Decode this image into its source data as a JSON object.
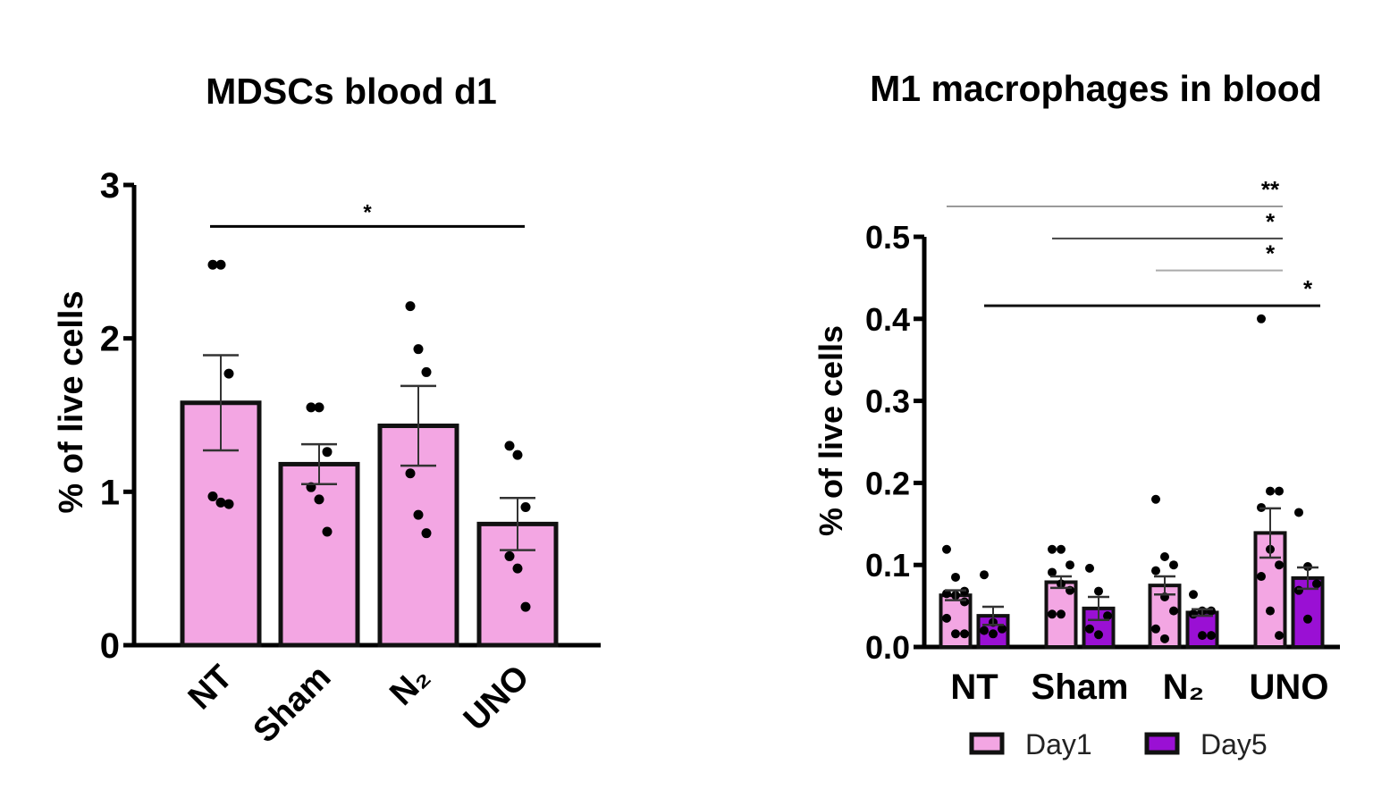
{
  "colors": {
    "day1": "#f3a6e3",
    "day5": "#9a10d4",
    "outline": "#111111",
    "point": "#000000"
  },
  "chart_data": [
    {
      "type": "bar",
      "title": "MDSCs blood d1",
      "ylabel": "% of live cells",
      "xlabel": "",
      "ylim": [
        0,
        3
      ],
      "yticks": [
        "0",
        "1",
        "2",
        "3"
      ],
      "categories": [
        "NT",
        "Sham",
        "N₂",
        "UNO"
      ],
      "values": [
        1.58,
        1.18,
        1.43,
        0.79
      ],
      "sem": [
        0.31,
        0.13,
        0.26,
        0.17
      ],
      "points": [
        [
          2.48,
          2.48,
          1.77,
          0.97,
          0.93,
          0.92
        ],
        [
          1.55,
          1.55,
          1.26,
          1.03,
          0.95,
          0.74
        ],
        [
          2.21,
          1.93,
          1.78,
          1.12,
          0.85,
          0.73
        ],
        [
          1.3,
          1.24,
          0.9,
          0.58,
          0.5,
          0.25
        ]
      ],
      "significance": [
        {
          "from": 0,
          "to": 3,
          "y": 2.73,
          "label": "*"
        }
      ],
      "grid": false
    },
    {
      "type": "bar",
      "title": "M1 macrophages in blood",
      "ylabel": "% of live cells",
      "xlabel": "",
      "ylim": [
        0,
        0.5
      ],
      "yticks": [
        "0.0",
        "0.1",
        "0.2",
        "0.3",
        "0.4",
        "0.5"
      ],
      "categories": [
        "NT",
        "Sham",
        "N₂",
        "UNO"
      ],
      "legend_position": "bottom",
      "series": [
        {
          "name": "Day1",
          "values": [
            0.063,
            0.079,
            0.075,
            0.139
          ],
          "sem": [
            0.006,
            0.007,
            0.011,
            0.03
          ],
          "points": [
            [
              0.119,
              0.085,
              0.068,
              0.065,
              0.063,
              0.055,
              0.035,
              0.016,
              0.016
            ],
            [
              0.119,
              0.119,
              0.1,
              0.091,
              0.077,
              0.069,
              0.04,
              0.04
            ],
            [
              0.18,
              0.11,
              0.1,
              0.093,
              0.061,
              0.044,
              0.022,
              0.01
            ],
            [
              0.4,
              0.19,
              0.19,
              0.17,
              0.119,
              0.1,
              0.086,
              0.044,
              0.014
            ]
          ]
        },
        {
          "name": "Day5",
          "values": [
            0.038,
            0.047,
            0.042,
            0.084
          ],
          "sem": [
            0.011,
            0.014,
            0.004,
            0.013
          ],
          "points": [
            [
              0.088,
              0.03,
              0.022,
              0.02,
              0.016
            ],
            [
              0.096,
              0.068,
              0.038,
              0.022,
              0.015
            ],
            [
              0.064,
              0.044,
              0.044,
              0.04,
              0.014,
              0.014
            ],
            [
              0.164,
              0.098,
              0.077,
              0.069,
              0.034
            ]
          ]
        }
      ],
      "significance": [
        {
          "from": [
            0,
            0
          ],
          "to": [
            3,
            0
          ],
          "y": 0.537,
          "label": "**",
          "color": "#9a9a9a"
        },
        {
          "from": [
            1,
            0
          ],
          "to": [
            3,
            0
          ],
          "y": 0.498,
          "label": "*",
          "color": "#444444"
        },
        {
          "from": [
            2,
            0
          ],
          "to": [
            3,
            0
          ],
          "y": 0.459,
          "label": "*",
          "color": "#aaaaaa"
        },
        {
          "from": [
            0,
            1
          ],
          "to": [
            3,
            1
          ],
          "y": 0.416,
          "label": "*",
          "color": "#111111"
        }
      ],
      "grid": false
    }
  ]
}
